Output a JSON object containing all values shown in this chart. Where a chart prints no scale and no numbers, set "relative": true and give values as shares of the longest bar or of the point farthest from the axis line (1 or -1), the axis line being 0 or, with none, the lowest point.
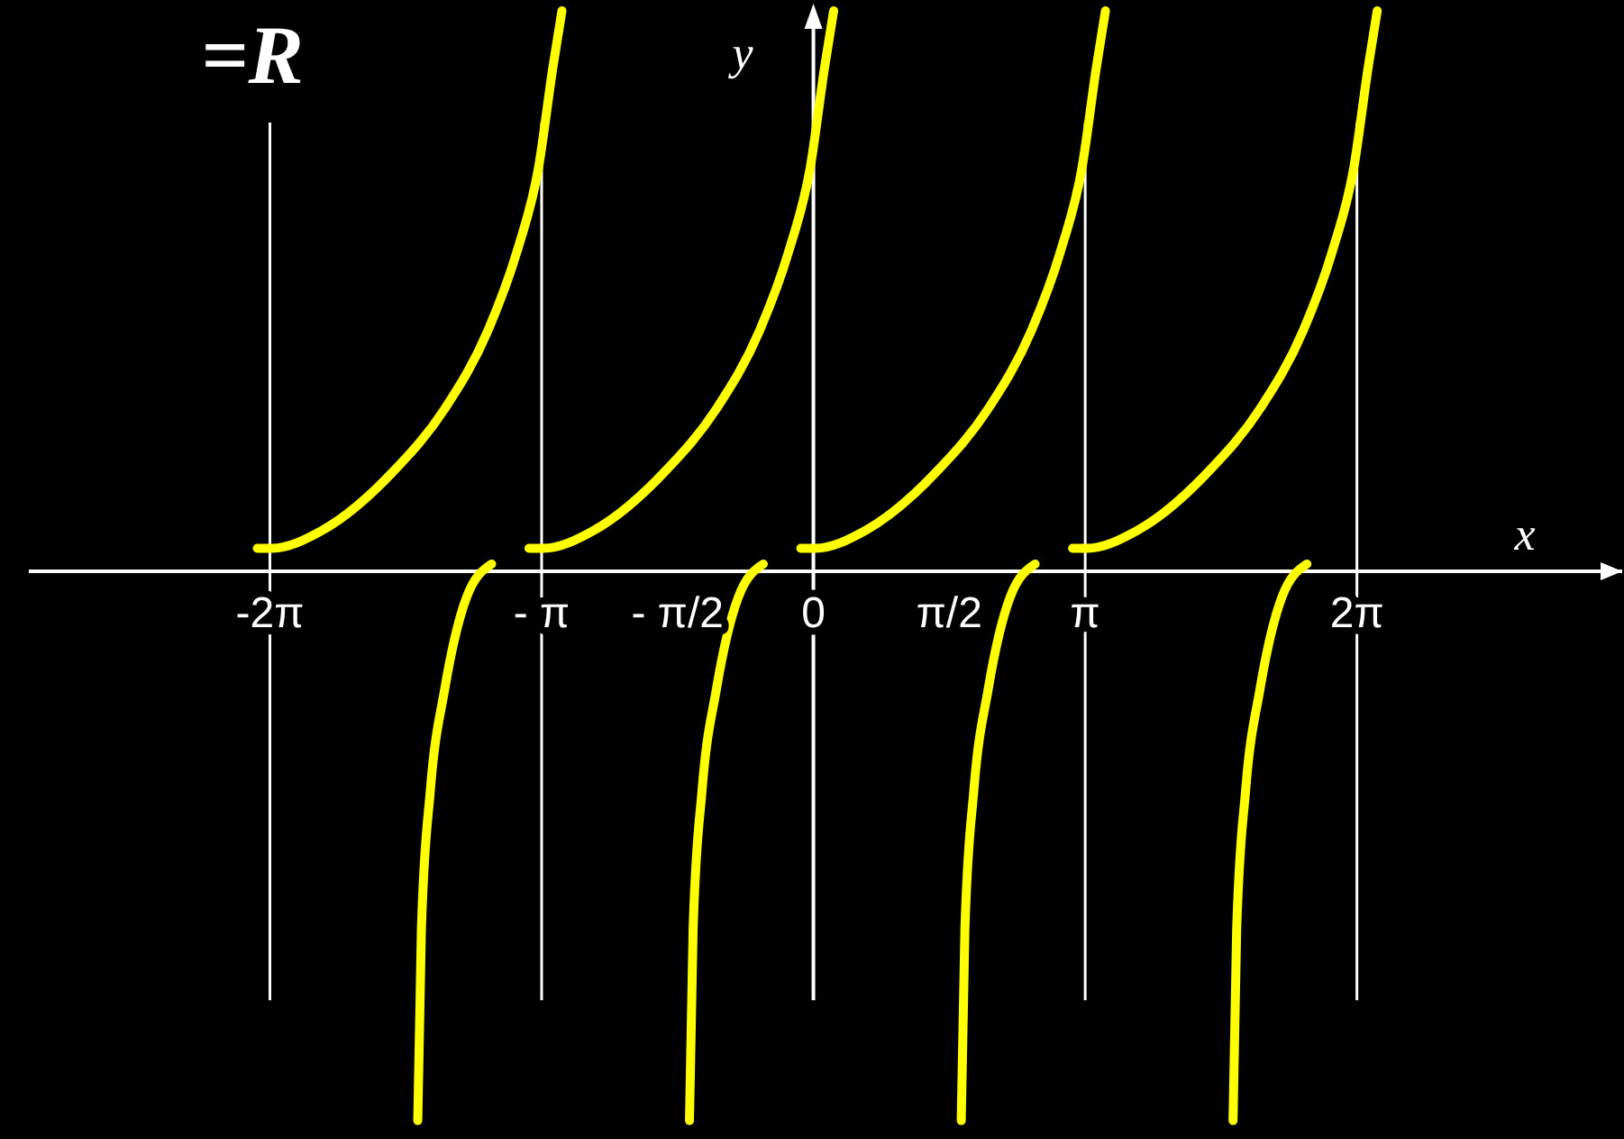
{
  "chart_data": {
    "type": "line",
    "title": "=R",
    "xlabel": "x",
    "ylabel": "y",
    "relative": true,
    "xlim": [
      -9.07,
      9.35
    ],
    "xticks": [
      {
        "value": -6.283,
        "label": "-2π"
      },
      {
        "value": -3.142,
        "label": "- π"
      },
      {
        "value": -1.571,
        "label": "- π/2"
      },
      0,
      {
        "value": 1.571,
        "label": "π/2"
      },
      {
        "value": 3.142,
        "label": "π"
      },
      {
        "value": 6.283,
        "label": "2π"
      }
    ],
    "ref_lines": [
      {
        "axis": "x",
        "value": -6.283,
        "color": "#ffffff"
      },
      {
        "axis": "x",
        "value": -3.142,
        "color": "#ffffff"
      },
      {
        "axis": "x",
        "value": 3.142,
        "color": "#ffffff"
      },
      {
        "axis": "x",
        "value": 6.283,
        "color": "#ffffff"
      }
    ],
    "series": [
      {
        "color": "#ffff00",
        "x": [
          -6.429,
          -6.262,
          -5.679,
          -4.845,
          -4.262,
          -3.761,
          -3.428,
          -3.178,
          -3.011,
          -2.907
        ],
        "values": [
          0.041,
          0.041,
          0.073,
          0.18,
          0.29,
          0.43,
          0.57,
          0.72,
          0.9,
          1
        ]
      },
      {
        "color": "#ffff00",
        "x": [
          -3.288,
          -3.121,
          -2.538,
          -1.704,
          -1.121,
          -0.62,
          -0.287,
          -0.037,
          0.13,
          0.234
        ],
        "values": [
          0.041,
          0.041,
          0.073,
          0.18,
          0.29,
          0.43,
          0.57,
          0.72,
          0.9,
          1
        ]
      },
      {
        "color": "#ffff00",
        "x": [
          -0.146,
          0.021,
          0.604,
          1.438,
          2.021,
          2.522,
          2.855,
          3.105,
          3.272,
          3.376
        ],
        "values": [
          0.041,
          0.041,
          0.073,
          0.18,
          0.29,
          0.43,
          0.57,
          0.72,
          0.9,
          1
        ]
      },
      {
        "color": "#ffff00",
        "x": [
          2.996,
          3.163,
          3.746,
          4.58,
          5.163,
          5.664,
          5.997,
          6.247,
          6.414,
          6.518
        ],
        "values": [
          0.041,
          0.041,
          0.073,
          0.18,
          0.29,
          0.43,
          0.57,
          0.72,
          0.9,
          1
        ]
      },
      {
        "color": "#ffff00",
        "x": [
          -4.574,
          -4.532,
          -4.428,
          -4.262,
          -4.011,
          -3.72
        ],
        "values": [
          -0.98,
          -0.64,
          -0.39,
          -0.21,
          -0.047,
          0.013
        ]
      },
      {
        "color": "#ffff00",
        "x": [
          -1.433,
          -1.391,
          -1.287,
          -1.121,
          -0.87,
          -0.579
        ],
        "values": [
          -0.98,
          -0.64,
          -0.39,
          -0.21,
          -0.047,
          0.013
        ]
      },
      {
        "color": "#ffff00",
        "x": [
          1.709,
          1.751,
          1.855,
          2.021,
          2.272,
          2.563
        ],
        "values": [
          -0.98,
          -0.64,
          -0.39,
          -0.21,
          -0.047,
          0.013
        ]
      },
      {
        "color": "#ffff00",
        "x": [
          4.851,
          4.893,
          4.997,
          5.163,
          5.414,
          5.705
        ],
        "values": [
          -0.98,
          -0.64,
          -0.39,
          -0.21,
          -0.047,
          0.013
        ]
      }
    ]
  }
}
